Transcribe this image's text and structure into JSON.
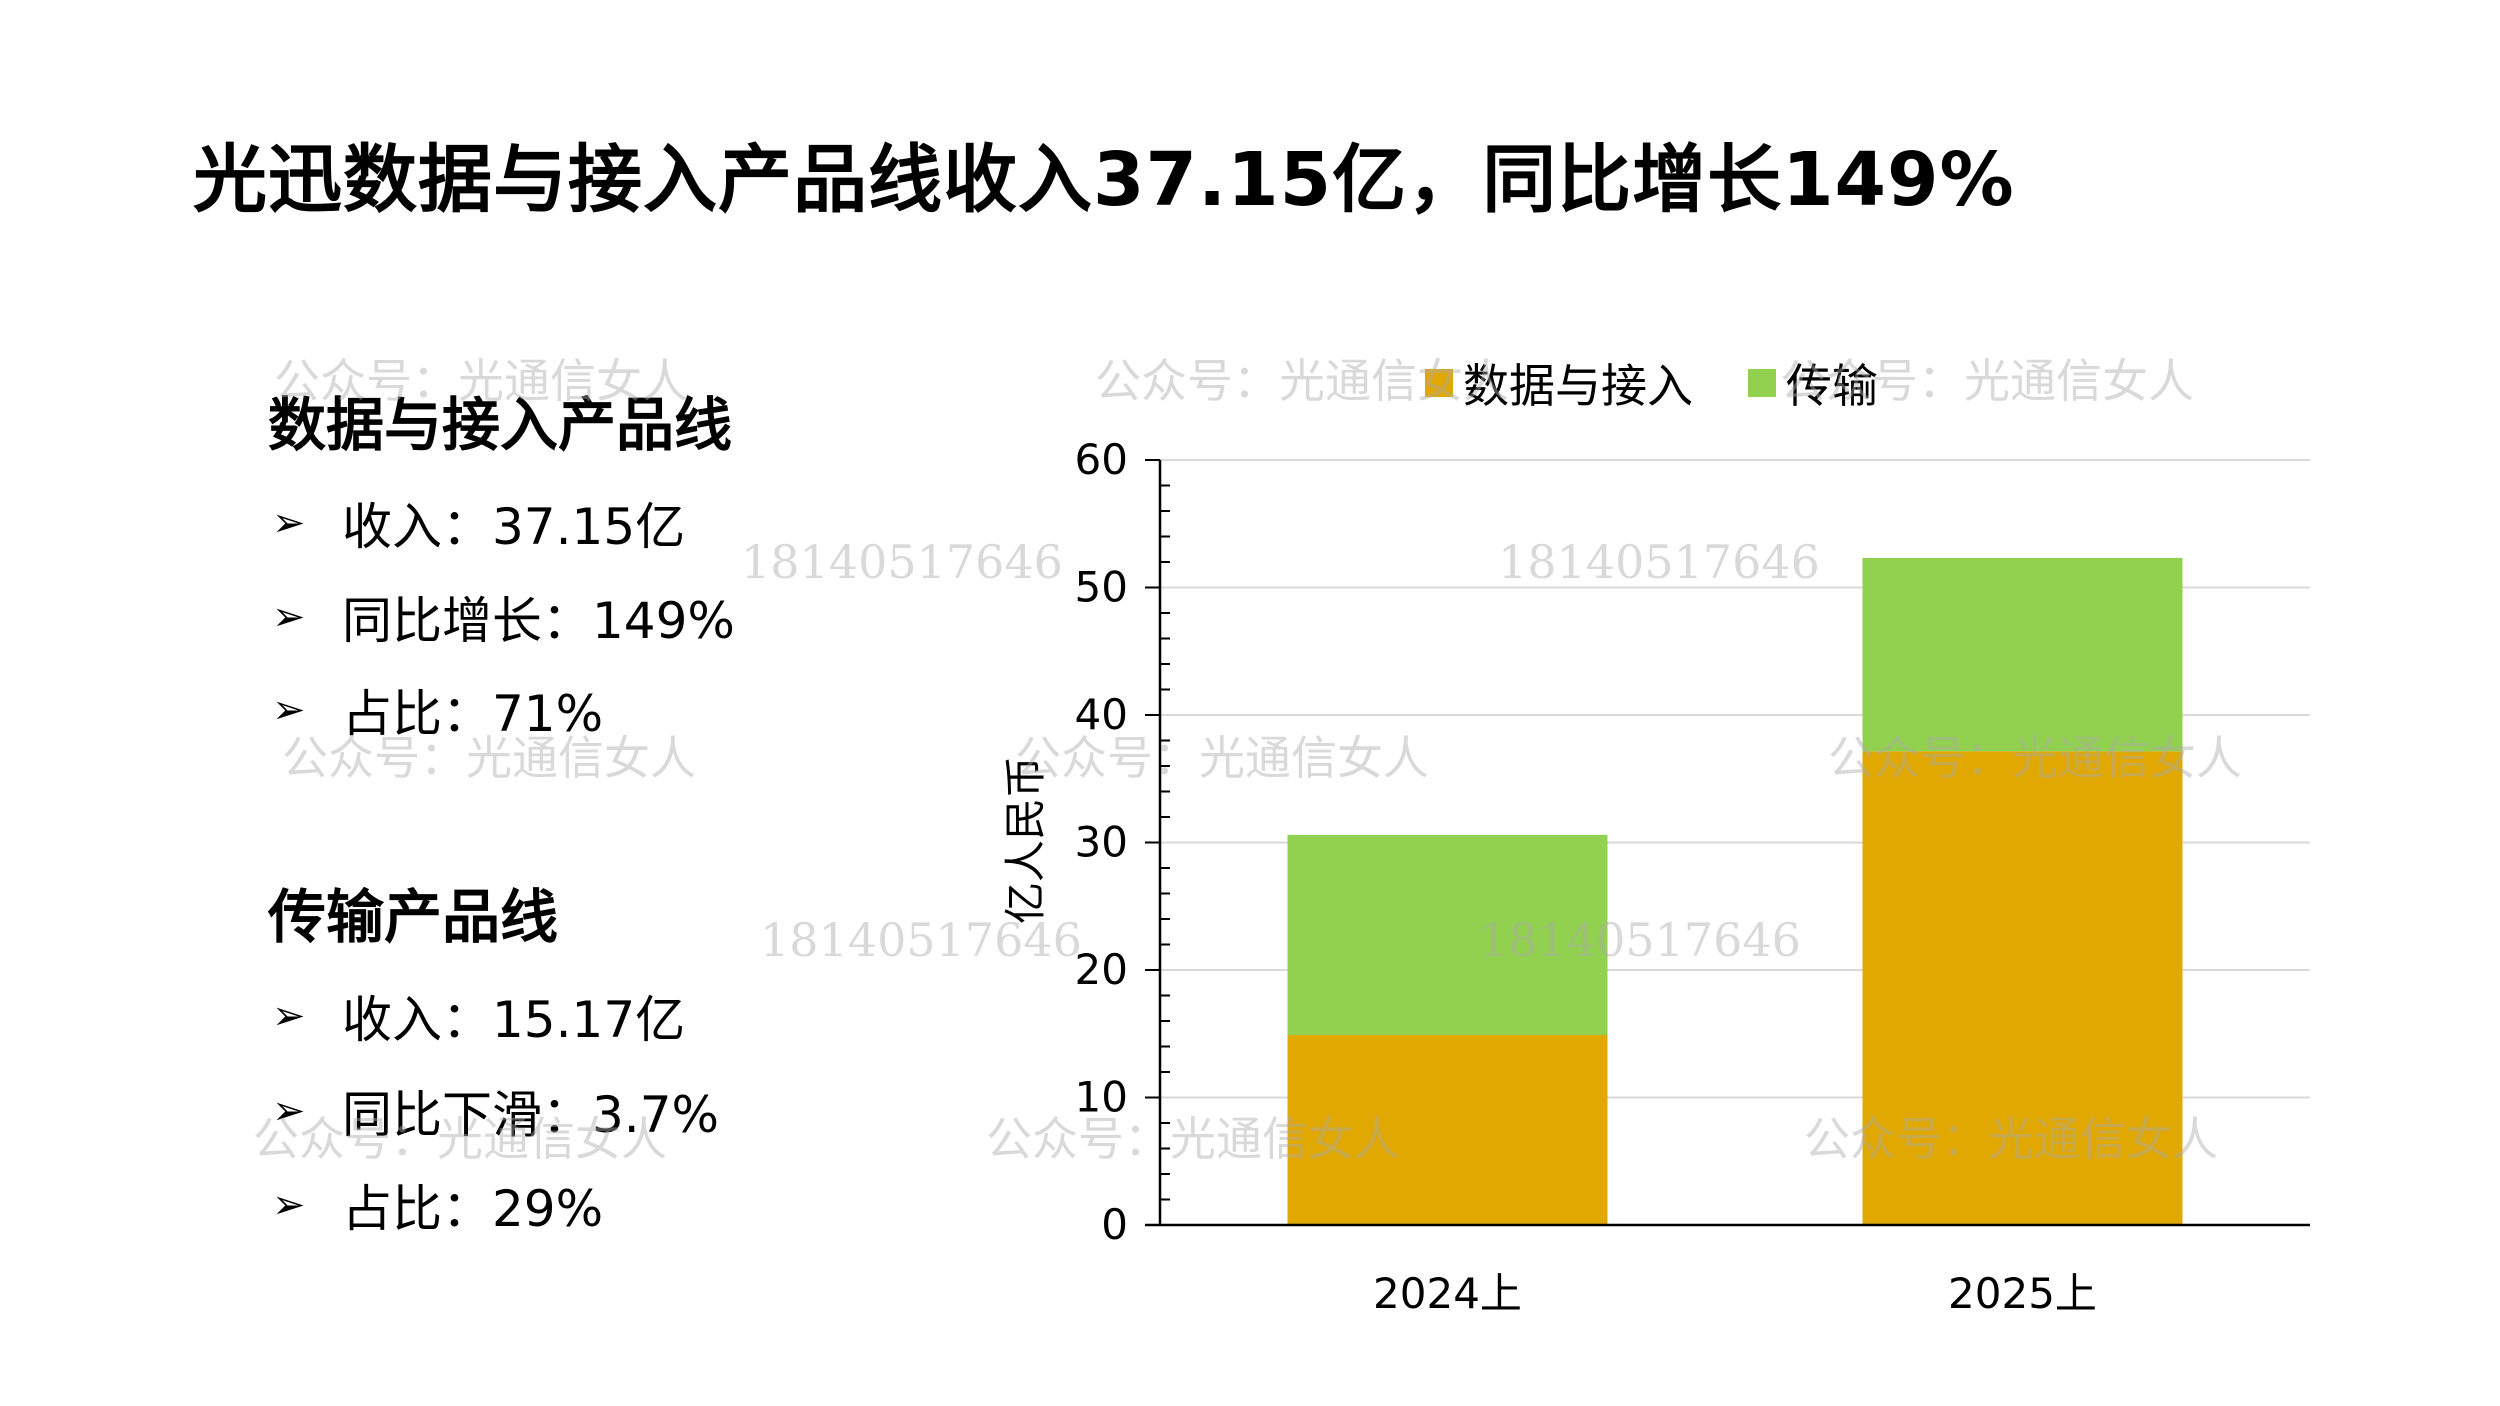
{
  "title": "光迅数据与接入产品线收入37.15亿，同比增长149%",
  "sections": [
    {
      "heading": "数据与接入产品线",
      "bullets": [
        "收入：37.15亿",
        "同比增长：149%",
        "占比：71%"
      ]
    },
    {
      "heading": "传输产品线",
      "bullets": [
        "收入：15.17亿",
        "同比下滑：3.7%",
        "占比：29%"
      ]
    }
  ],
  "bullet_icon": "arrowhead-bullet",
  "watermarks": {
    "account": "公众号：光通信女人",
    "phone": "18140517646"
  },
  "chart_data": {
    "type": "bar",
    "stacked": true,
    "title": "",
    "xlabel": "",
    "ylabel": "亿人民币",
    "categories": [
      "2024上",
      "2025上"
    ],
    "series": [
      {
        "name": "数据与接入",
        "values": [
          14.9,
          37.15
        ],
        "color": "#E0A800"
      },
      {
        "name": "传输",
        "values": [
          15.7,
          15.17
        ],
        "color": "#92D050"
      }
    ],
    "ylim": [
      0,
      60
    ],
    "yticks": [
      0,
      10,
      20,
      30,
      40,
      50,
      60
    ],
    "grid": true,
    "legend": "top"
  }
}
